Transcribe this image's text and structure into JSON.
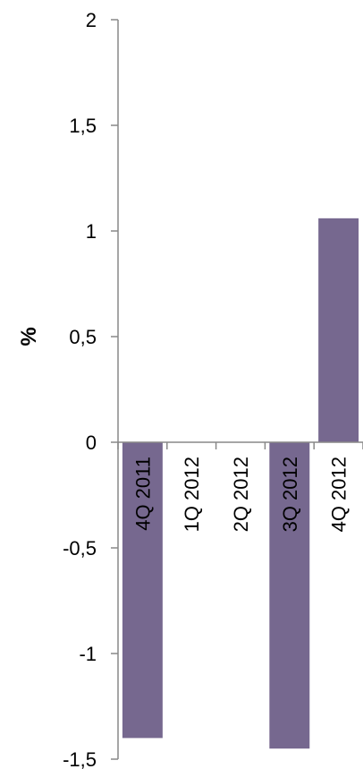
{
  "chart_data": {
    "type": "bar",
    "categories": [
      "4Q 2011",
      "1Q 2012",
      "2Q 2012",
      "3Q 2012",
      "4Q 2012"
    ],
    "values": [
      -1.4,
      0.0,
      0.0,
      -1.45,
      1.06
    ],
    "ylabel": "%",
    "xlabel": "",
    "ylim": [
      -1.5,
      2
    ],
    "yticks": [
      2,
      1.5,
      1,
      0.5,
      0,
      -0.5,
      -1,
      -1.5
    ],
    "ytick_labels": [
      "2",
      "1,5",
      "1",
      "0,5",
      "0",
      "-0,5",
      "-1",
      "-1,5"
    ],
    "bar_color": "#76688f",
    "grid": false,
    "legend": "none"
  }
}
